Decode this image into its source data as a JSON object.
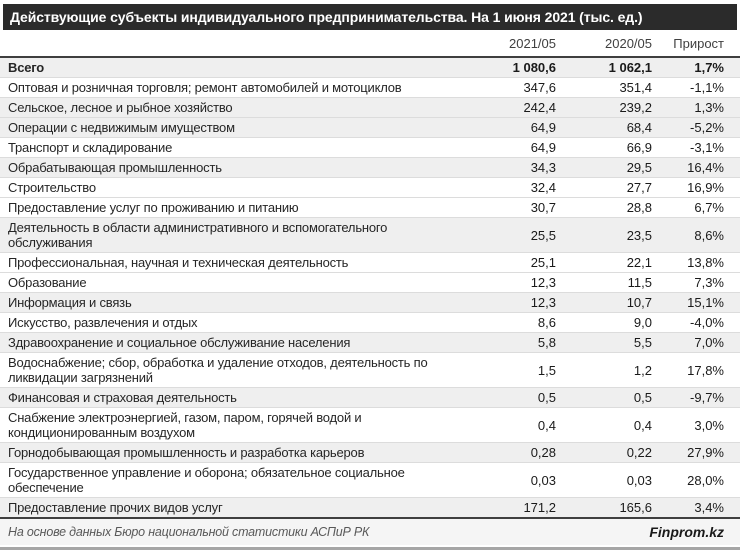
{
  "title": "Действующие субъекты индивидуального предпринимательства. На 1 июня 2021 (тыс. ед.)",
  "colors": {
    "title_bar_bg": "#2b2b2b",
    "title_text": "#ffffff",
    "row_shade": "#efefef",
    "header_text": "#404040",
    "body_text": "#1a1a1a",
    "rule_dark": "#3f3f3f",
    "rule_light": "#dcdcdc",
    "footer_bg": "#f5f5f5",
    "footer_text": "#595959",
    "bottom_bar": "#a6a6a6"
  },
  "chart_data": {
    "type": "table",
    "title": "Действующие субъекты индивидуального предпринимательства. На 1 июня 2021 (тыс. ед.)",
    "columns": [
      "2021/05",
      "2020/05",
      "Прирост"
    ],
    "rows": [
      {
        "label": "Всего",
        "values_display": [
          "1 080,6",
          "1 062,1",
          "1,7%"
        ],
        "v2021": 1080.6,
        "v2020": 1062.1,
        "growth_pct": 1.7,
        "bold": true,
        "shade": "gray"
      },
      {
        "label": "Оптовая и розничная торговля; ремонт автомобилей и мотоциклов",
        "values_display": [
          "347,6",
          "351,4",
          "-1,1%"
        ],
        "v2021": 347.6,
        "v2020": 351.4,
        "growth_pct": -1.1,
        "bold": false,
        "shade": "white"
      },
      {
        "label": "Сельское, лесное и рыбное хозяйство",
        "values_display": [
          "242,4",
          "239,2",
          "1,3%"
        ],
        "v2021": 242.4,
        "v2020": 239.2,
        "growth_pct": 1.3,
        "bold": false,
        "shade": "gray"
      },
      {
        "label": "Операции с недвижимым имуществом",
        "values_display": [
          "64,9",
          "68,4",
          "-5,2%"
        ],
        "v2021": 64.9,
        "v2020": 68.4,
        "growth_pct": -5.2,
        "bold": false,
        "shade": "gray"
      },
      {
        "label": "Транспорт и складирование",
        "values_display": [
          "64,9",
          "66,9",
          "-3,1%"
        ],
        "v2021": 64.9,
        "v2020": 66.9,
        "growth_pct": -3.1,
        "bold": false,
        "shade": "white"
      },
      {
        "label": "Обрабатывающая промышленность",
        "values_display": [
          "34,3",
          "29,5",
          "16,4%"
        ],
        "v2021": 34.3,
        "v2020": 29.5,
        "growth_pct": 16.4,
        "bold": false,
        "shade": "gray"
      },
      {
        "label": "Строительство",
        "values_display": [
          "32,4",
          "27,7",
          "16,9%"
        ],
        "v2021": 32.4,
        "v2020": 27.7,
        "growth_pct": 16.9,
        "bold": false,
        "shade": "white"
      },
      {
        "label": "Предоставление услуг по проживанию и питанию",
        "values_display": [
          "30,7",
          "28,8",
          "6,7%"
        ],
        "v2021": 30.7,
        "v2020": 28.8,
        "growth_pct": 6.7,
        "bold": false,
        "shade": "white"
      },
      {
        "label": "Деятельность в области административного и вспомогательного обслуживания",
        "values_display": [
          "25,5",
          "23,5",
          "8,6%"
        ],
        "v2021": 25.5,
        "v2020": 23.5,
        "growth_pct": 8.6,
        "bold": false,
        "shade": "gray"
      },
      {
        "label": "Профессиональная, научная и техническая деятельность",
        "values_display": [
          "25,1",
          "22,1",
          "13,8%"
        ],
        "v2021": 25.1,
        "v2020": 22.1,
        "growth_pct": 13.8,
        "bold": false,
        "shade": "white"
      },
      {
        "label": "Образование",
        "values_display": [
          "12,3",
          "11,5",
          "7,3%"
        ],
        "v2021": 12.3,
        "v2020": 11.5,
        "growth_pct": 7.3,
        "bold": false,
        "shade": "white"
      },
      {
        "label": "Информация и связь",
        "values_display": [
          "12,3",
          "10,7",
          "15,1%"
        ],
        "v2021": 12.3,
        "v2020": 10.7,
        "growth_pct": 15.1,
        "bold": false,
        "shade": "gray"
      },
      {
        "label": "Искусство, развлечения и отдых",
        "values_display": [
          "8,6",
          "9,0",
          "-4,0%"
        ],
        "v2021": 8.6,
        "v2020": 9.0,
        "growth_pct": -4.0,
        "bold": false,
        "shade": "white"
      },
      {
        "label": "Здравоохранение и социальное обслуживание населения",
        "values_display": [
          "5,8",
          "5,5",
          "7,0%"
        ],
        "v2021": 5.8,
        "v2020": 5.5,
        "growth_pct": 7.0,
        "bold": false,
        "shade": "gray"
      },
      {
        "label": "Водоснабжение; сбор, обработка и удаление отходов, деятельность по ликвидации загрязнений",
        "values_display": [
          "1,5",
          "1,2",
          "17,8%"
        ],
        "v2021": 1.5,
        "v2020": 1.2,
        "growth_pct": 17.8,
        "bold": false,
        "shade": "white"
      },
      {
        "label": "Финансовая и страховая деятельность",
        "values_display": [
          "0,5",
          "0,5",
          "-9,7%"
        ],
        "v2021": 0.5,
        "v2020": 0.5,
        "growth_pct": -9.7,
        "bold": false,
        "shade": "gray"
      },
      {
        "label": "Снабжение электроэнергией, газом, паром, горячей водой и кондиционированным воздухом",
        "values_display": [
          "0,4",
          "0,4",
          "3,0%"
        ],
        "v2021": 0.4,
        "v2020": 0.4,
        "growth_pct": 3.0,
        "bold": false,
        "shade": "white"
      },
      {
        "label": "Горнодобывающая промышленность и разработка карьеров",
        "values_display": [
          "0,28",
          "0,22",
          "27,9%"
        ],
        "v2021": 0.28,
        "v2020": 0.22,
        "growth_pct": 27.9,
        "bold": false,
        "shade": "gray"
      },
      {
        "label": "Государственное управление и оборона; обязательное социальное обеспечение",
        "values_display": [
          "0,03",
          "0,03",
          "28,0%"
        ],
        "v2021": 0.03,
        "v2020": 0.03,
        "growth_pct": 28.0,
        "bold": false,
        "shade": "white"
      },
      {
        "label": "Предоставление прочих видов услуг",
        "values_display": [
          "171,2",
          "165,6",
          "3,4%"
        ],
        "v2021": 171.2,
        "v2020": 165.6,
        "growth_pct": 3.4,
        "bold": false,
        "shade": "gray"
      }
    ],
    "source": "На основе данных Бюро национальной статистики АСПиР РК",
    "brand": "Finprom.kz",
    "layout": {
      "value_alignment": "right",
      "grid": "horizontal-rules",
      "zebra": true
    }
  }
}
